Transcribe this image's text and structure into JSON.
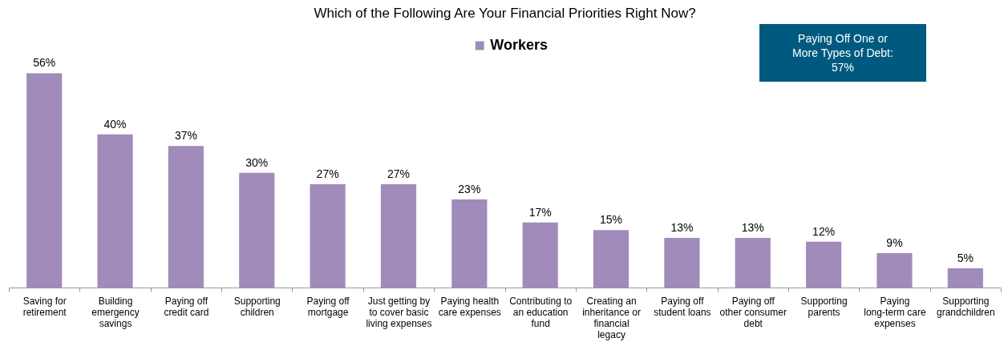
{
  "chart_data": {
    "type": "bar",
    "title": "Which of the Following Are Your Financial Priorities Right Now?",
    "categories": [
      "Saving for retirement",
      "Building emergency savings",
      "Paying off credit card",
      "Supporting children",
      "Paying off mortgage",
      "Just getting by to cover basic living expenses",
      "Paying health care expenses",
      "Contributing to an education fund",
      "Creating an inheritance or financial legacy",
      "Paying off student loans",
      "Paying off other consumer debt",
      "Supporting parents",
      "Paying long-term care expenses",
      "Supporting grandchildren"
    ],
    "series": [
      {
        "name": "Workers",
        "color": "#a08bbb",
        "values": [
          56,
          40,
          37,
          30,
          27,
          27,
          23,
          17,
          15,
          13,
          13,
          12,
          9,
          5
        ],
        "value_labels": [
          "56%",
          "40%",
          "37%",
          "30%",
          "27%",
          "27%",
          "23%",
          "17%",
          "15%",
          "13%",
          "13%",
          "12%",
          "9%",
          "5%"
        ]
      }
    ],
    "annotations": [
      "Paying Off One or More Types of Debt: 57%"
    ],
    "legend": "top",
    "tick_labels": "x"
  }
}
